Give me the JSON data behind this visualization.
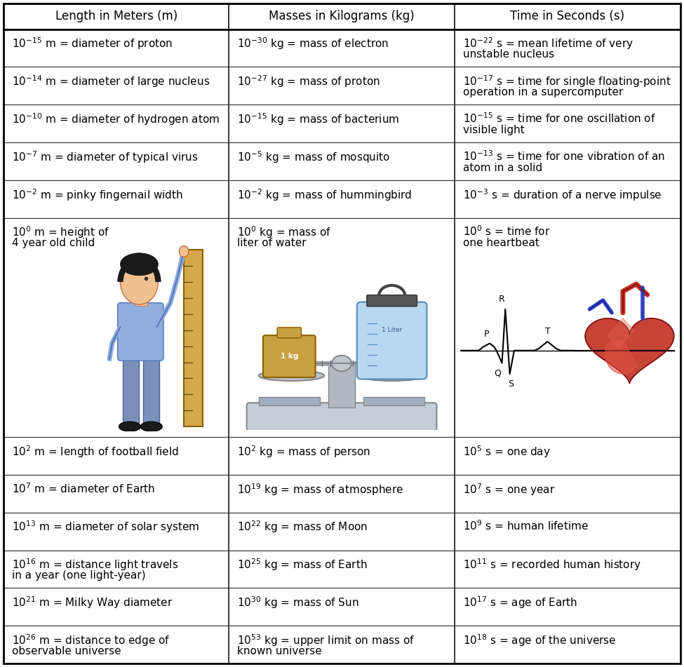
{
  "col_headers": [
    "Length in Meters (m)",
    "Masses in Kilograms (kg)",
    "Time in Seconds (s)"
  ],
  "header_fontsize": 12,
  "cell_fontsize": 11,
  "text_color": "#000000",
  "figsize": [
    9.75,
    9.51
  ],
  "dpi": 100,
  "rows": [
    {
      "length": {
        "exp": "-15",
        "unit": "m",
        "desc": "diameter of proton"
      },
      "mass": {
        "exp": "-30",
        "unit": "kg",
        "desc": "mass of electron"
      },
      "time": {
        "exp": "-22",
        "unit": "s",
        "desc": "mean lifetime of very\nunstable nucleus"
      }
    },
    {
      "length": {
        "exp": "-14",
        "unit": "m",
        "desc": "diameter of large nucleus"
      },
      "mass": {
        "exp": "-27",
        "unit": "kg",
        "desc": "mass of proton"
      },
      "time": {
        "exp": "-17",
        "unit": "s",
        "desc": "time for single floating-point\noperation in a supercomputer"
      }
    },
    {
      "length": {
        "exp": "-10",
        "unit": "m",
        "desc": "diameter of hydrogen atom"
      },
      "mass": {
        "exp": "-15",
        "unit": "kg",
        "desc": "mass of bacterium"
      },
      "time": {
        "exp": "-15",
        "unit": "s",
        "desc": "time for one oscillation of\nvisible light"
      }
    },
    {
      "length": {
        "exp": "-7",
        "unit": "m",
        "desc": "diameter of typical virus"
      },
      "mass": {
        "exp": "-5",
        "unit": "kg",
        "desc": "mass of mosquito"
      },
      "time": {
        "exp": "-13",
        "unit": "s",
        "desc": "time for one vibration of an\natom in a solid"
      }
    },
    {
      "length": {
        "exp": "-2",
        "unit": "m",
        "desc": "pinky fingernail width"
      },
      "mass": {
        "exp": "-2",
        "unit": "kg",
        "desc": "mass of hummingbird"
      },
      "time": {
        "exp": "-3",
        "unit": "s",
        "desc": "duration of a nerve impulse"
      }
    },
    {
      "length": {
        "exp": "0",
        "unit": "m",
        "desc": "height of\n4 year old child",
        "has_image": true
      },
      "mass": {
        "exp": "0",
        "unit": "kg",
        "desc": "mass of\nliter of water",
        "has_image": true
      },
      "time": {
        "exp": "0",
        "unit": "s",
        "desc": "time for\none heartbeat",
        "has_image": true
      }
    },
    {
      "length": {
        "exp": "2",
        "unit": "m",
        "desc": "length of football field"
      },
      "mass": {
        "exp": "2",
        "unit": "kg",
        "desc": "mass of person"
      },
      "time": {
        "exp": "5",
        "unit": "s",
        "desc": "one day"
      }
    },
    {
      "length": {
        "exp": "7",
        "unit": "m",
        "desc": "diameter of Earth"
      },
      "mass": {
        "exp": "19",
        "unit": "kg",
        "desc": "mass of atmosphere"
      },
      "time": {
        "exp": "7",
        "unit": "s",
        "desc": "one year"
      }
    },
    {
      "length": {
        "exp": "13",
        "unit": "m",
        "desc": "diameter of solar system"
      },
      "mass": {
        "exp": "22",
        "unit": "kg",
        "desc": "mass of Moon"
      },
      "time": {
        "exp": "9",
        "unit": "s",
        "desc": "human lifetime"
      }
    },
    {
      "length": {
        "exp": "16",
        "unit": "m",
        "desc": "distance light travels\nin a year (one light-year)"
      },
      "mass": {
        "exp": "25",
        "unit": "kg",
        "desc": "mass of Earth"
      },
      "time": {
        "exp": "11",
        "unit": "s",
        "desc": "recorded human history"
      }
    },
    {
      "length": {
        "exp": "21",
        "unit": "m",
        "desc": "Milky Way diameter"
      },
      "mass": {
        "exp": "30",
        "unit": "kg",
        "desc": "mass of Sun"
      },
      "time": {
        "exp": "17",
        "unit": "s",
        "desc": "age of Earth"
      }
    },
    {
      "length": {
        "exp": "26",
        "unit": "m",
        "desc": "distance to edge of\nobservable universe"
      },
      "mass": {
        "exp": "53",
        "unit": "kg",
        "desc": "upper limit on mass of\nknown universe"
      },
      "time": {
        "exp": "18",
        "unit": "s",
        "desc": "age of the universe"
      }
    }
  ]
}
